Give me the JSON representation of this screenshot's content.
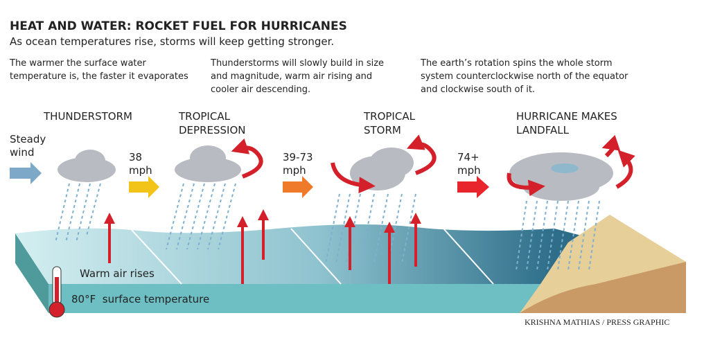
{
  "header": {
    "title": "HEAT AND WATER: ROCKET FUEL FOR HURRICANES",
    "subtitle": "As ocean temperatures rise, storms will keep getting stronger."
  },
  "notes": [
    "The warmer the surface water temperature is, the faster it evaporates",
    "Thunderstorms will slowly build in size and magnitude, warm air rising and cooler air descending.",
    "The earth’s rotation spins the whole storm system counterclockwise north of the equator and clockwise south of it."
  ],
  "stages": [
    "THUNDERSTORM",
    "TROPICAL DEPRESSION",
    "TROPICAL STORM",
    "HURRICANE MAKES LANDFALL"
  ],
  "winds": [
    "Steady wind",
    "38 mph",
    "39-73 mph",
    "74+ mph"
  ],
  "labels": {
    "warm_air": "Warm air rises",
    "temperature": "80°F  surface temperature"
  },
  "credit": "KRISHNA MATHIAS / PRESS GRAPHIC"
}
